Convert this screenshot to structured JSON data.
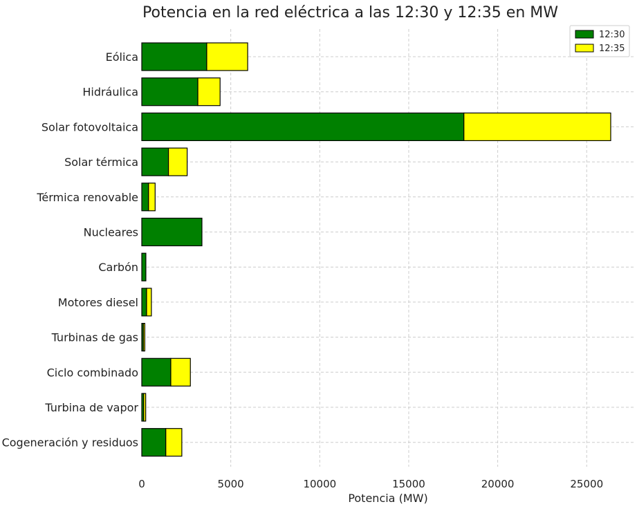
{
  "chart_data": {
    "type": "bar",
    "orientation": "horizontal",
    "stacked": true,
    "title": "Potencia en la red eléctrica a las 12:30 y 12:35 en MW",
    "xlabel": "Potencia (MW)",
    "ylabel": "",
    "xlim": [
      0,
      27500
    ],
    "xticks": [
      0,
      5000,
      10000,
      15000,
      20000,
      25000
    ],
    "grid": true,
    "legend_position": "top-right",
    "categories": [
      "Eólica",
      "Hidráulica",
      "Solar fotovoltaica",
      "Solar térmica",
      "Térmica renovable",
      "Nucleares",
      "Carbón",
      "Motores diesel",
      "Turbinas de gas",
      "Ciclo combinado",
      "Turbina de vapor",
      "Cogeneración y residuos"
    ],
    "series": [
      {
        "name": "12:30",
        "color": "#008000",
        "values": [
          3650,
          3150,
          18100,
          1500,
          380,
          3380,
          230,
          270,
          90,
          1630,
          110,
          1350
        ]
      },
      {
        "name": "12:35",
        "color": "#ffff00",
        "values": [
          2300,
          1250,
          8250,
          1050,
          370,
          0,
          0,
          270,
          80,
          1100,
          110,
          900
        ]
      }
    ]
  }
}
